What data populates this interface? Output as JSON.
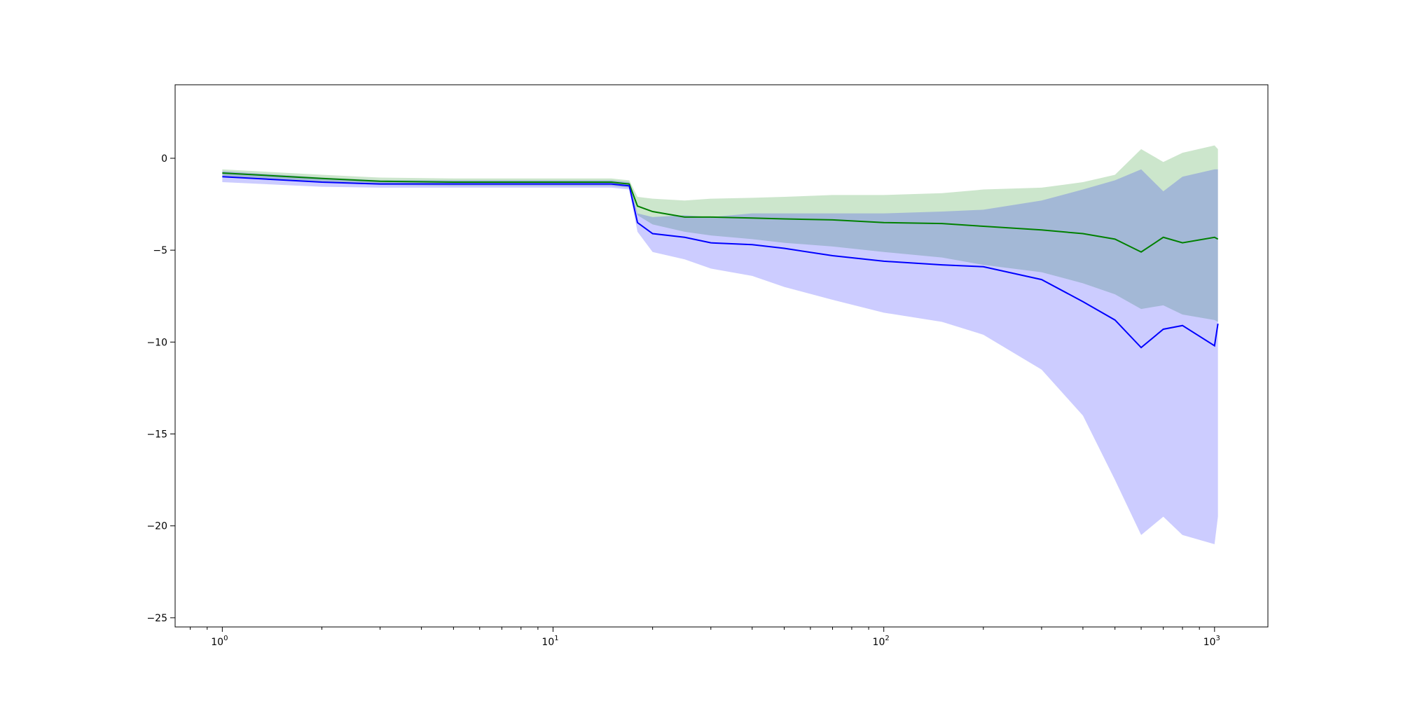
{
  "chart_data": {
    "type": "line",
    "title": "",
    "xlabel": "",
    "ylabel": "",
    "xscale": "log",
    "xlim": [
      0.72,
      1450
    ],
    "ylim": [
      -25.5,
      4.0
    ],
    "grid": false,
    "legend": "none",
    "x_ticks": [
      {
        "value": 1,
        "base": "10",
        "exp": "0"
      },
      {
        "value": 10,
        "base": "10",
        "exp": "1"
      },
      {
        "value": 100,
        "base": "10",
        "exp": "2"
      },
      {
        "value": 1000,
        "base": "10",
        "exp": "3"
      }
    ],
    "y_ticks": [
      {
        "value": 0,
        "label": "0"
      },
      {
        "value": -5,
        "label": "−5"
      },
      {
        "value": -10,
        "label": "−10"
      },
      {
        "value": -15,
        "label": "−15"
      },
      {
        "value": -20,
        "label": "−20"
      },
      {
        "value": -25,
        "label": "−25"
      }
    ],
    "series": [
      {
        "color": "#008000",
        "band_color": "#008000",
        "x": [
          1,
          2,
          3,
          5,
          10,
          15,
          17,
          18,
          20,
          25,
          30,
          40,
          50,
          70,
          100,
          150,
          200,
          300,
          400,
          500,
          600,
          700,
          800,
          1000,
          1024
        ],
        "y": [
          -0.8,
          -1.1,
          -1.25,
          -1.3,
          -1.3,
          -1.3,
          -1.4,
          -2.6,
          -2.9,
          -3.2,
          -3.2,
          -3.25,
          -3.3,
          -3.35,
          -3.5,
          -3.55,
          -3.7,
          -3.9,
          -4.1,
          -4.4,
          -5.1,
          -4.3,
          -4.6,
          -4.3,
          -4.4
        ],
        "lower": [
          -1.0,
          -1.3,
          -1.45,
          -1.5,
          -1.5,
          -1.5,
          -1.6,
          -3.1,
          -3.6,
          -4.0,
          -4.2,
          -4.4,
          -4.6,
          -4.8,
          -5.1,
          -5.4,
          -5.8,
          -6.2,
          -6.8,
          -7.4,
          -8.2,
          -8.0,
          -8.5,
          -8.8,
          -8.9
        ],
        "upper": [
          -0.6,
          -0.9,
          -1.05,
          -1.1,
          -1.1,
          -1.1,
          -1.2,
          -2.1,
          -2.2,
          -2.3,
          -2.2,
          -2.15,
          -2.1,
          -2.0,
          -2.0,
          -1.9,
          -1.7,
          -1.6,
          -1.3,
          -0.9,
          0.5,
          -0.2,
          0.3,
          0.7,
          0.5
        ]
      },
      {
        "color": "#0000ff",
        "band_color": "#0000ff",
        "x": [
          1,
          2,
          3,
          5,
          10,
          15,
          17,
          18,
          20,
          25,
          30,
          40,
          50,
          70,
          100,
          150,
          200,
          300,
          400,
          500,
          600,
          700,
          800,
          1000,
          1024
        ],
        "y": [
          -1.0,
          -1.3,
          -1.4,
          -1.4,
          -1.4,
          -1.4,
          -1.5,
          -3.5,
          -4.1,
          -4.3,
          -4.6,
          -4.7,
          -4.9,
          -5.3,
          -5.6,
          -5.8,
          -5.9,
          -6.6,
          -7.8,
          -8.8,
          -10.3,
          -9.3,
          -9.1,
          -10.2,
          -9.0
        ],
        "lower": [
          -1.3,
          -1.55,
          -1.6,
          -1.6,
          -1.6,
          -1.6,
          -1.7,
          -4.0,
          -5.1,
          -5.5,
          -6.0,
          -6.4,
          -7.0,
          -7.7,
          -8.4,
          -8.9,
          -9.6,
          -11.5,
          -14.0,
          -17.5,
          -20.5,
          -19.5,
          -20.5,
          -21.0,
          -19.5
        ],
        "upper": [
          -0.7,
          -1.05,
          -1.2,
          -1.2,
          -1.2,
          -1.2,
          -1.3,
          -3.0,
          -3.2,
          -3.1,
          -3.2,
          -3.0,
          -3.0,
          -3.0,
          -3.0,
          -2.9,
          -2.8,
          -2.3,
          -1.7,
          -1.2,
          -0.6,
          -1.8,
          -1.0,
          -0.6,
          -0.6
        ]
      }
    ]
  }
}
